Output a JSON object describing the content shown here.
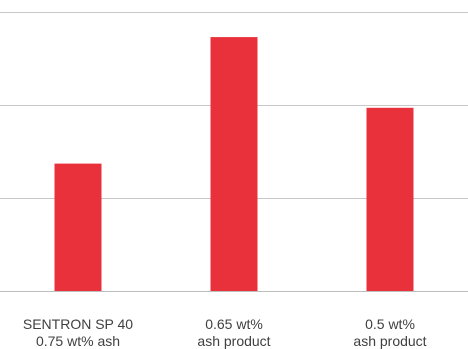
{
  "chart_data": {
    "type": "bar",
    "title": "",
    "xlabel": "",
    "ylabel": "",
    "categories": [
      [
        "SENTRON SP 40",
        "0.75 wt% ash"
      ],
      [
        "0.65 wt%",
        "ash product"
      ],
      [
        "0.5 wt%",
        "ash product"
      ]
    ],
    "values": [
      1.37,
      2.73,
      1.97
    ],
    "ylim": [
      0,
      3
    ],
    "grid": true,
    "bar_color": "#e8313b",
    "legend": "none"
  }
}
